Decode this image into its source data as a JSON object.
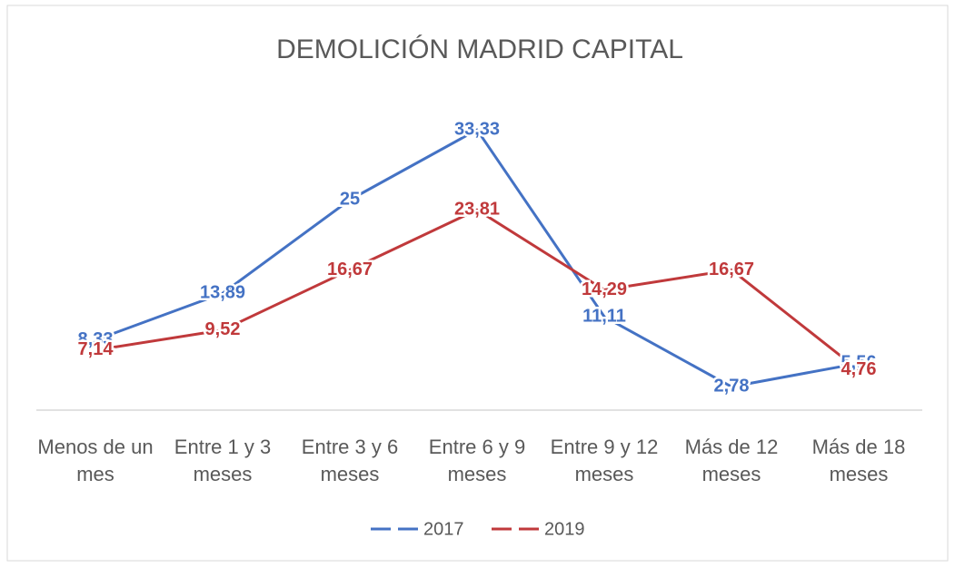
{
  "chart_data": {
    "type": "line",
    "title": "DEMOLICIÓN MADRID CAPITAL",
    "categories": [
      "Menos de un mes",
      "Entre 1 y 3 meses",
      "Entre 3 y 6 meses",
      "Entre 6 y 9 meses",
      "Entre 9 y 12 meses",
      "Más de 12 meses",
      "Más de 18 meses"
    ],
    "series": [
      {
        "name": "2017",
        "color": "#4472c4",
        "values": [
          8.33,
          13.89,
          25,
          33.33,
          11.11,
          2.78,
          5.56
        ],
        "value_labels": [
          "8,33",
          "13,89",
          "25",
          "33,33",
          "11,11",
          "2,78",
          "5,56"
        ]
      },
      {
        "name": "2019",
        "color": "#c0393b",
        "values": [
          7.14,
          9.52,
          16.67,
          23.81,
          14.29,
          16.67,
          4.76
        ],
        "value_labels": [
          "7,14",
          "9,52",
          "16,67",
          "23,81",
          "14,29",
          "16,67",
          "4,76"
        ]
      }
    ],
    "legend": "bottom"
  }
}
